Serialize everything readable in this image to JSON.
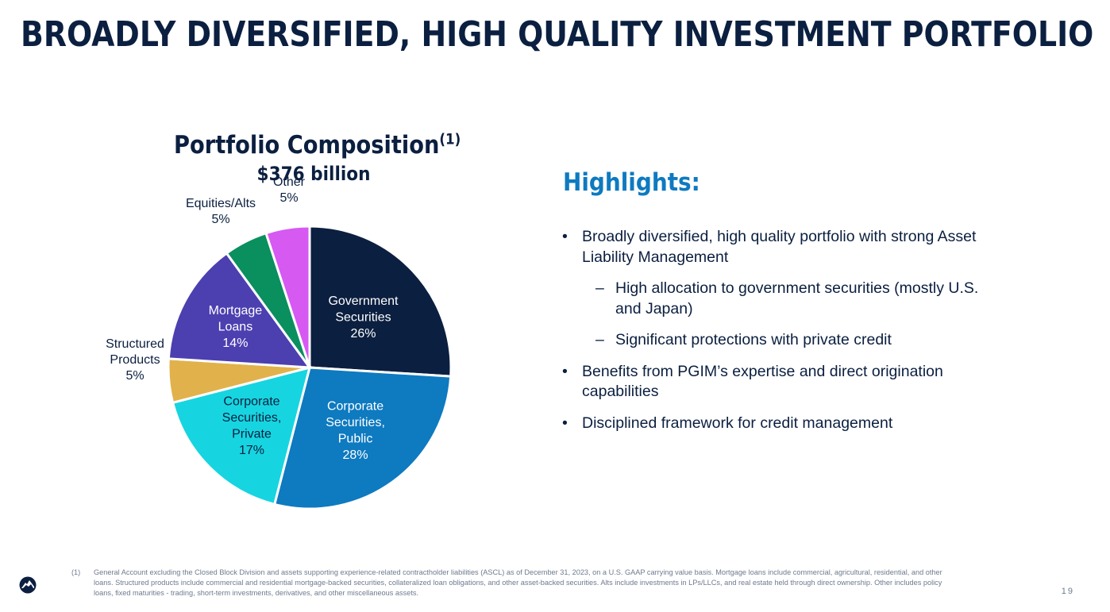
{
  "page": {
    "title": "BROADLY DIVERSIFIED, HIGH QUALITY INVESTMENT PORTFOLIO",
    "page_number": "19"
  },
  "chart": {
    "title": "Portfolio Composition",
    "title_sup": "(1)",
    "subtitle": "$376 billion"
  },
  "chart_data": {
    "type": "pie",
    "title": "Portfolio Composition",
    "subtitle": "$376 billion",
    "slices": [
      {
        "lines": [
          "Government",
          "Securities",
          "26%"
        ],
        "value": 26,
        "color": "#0b1f40",
        "label_inside": true,
        "text_color": "#ffffff"
      },
      {
        "lines": [
          "Corporate",
          "Securities,",
          "Public",
          "28%"
        ],
        "value": 28,
        "color": "#0e7ac0",
        "label_inside": true,
        "text_color": "#ffffff"
      },
      {
        "lines": [
          "Corporate",
          "Securities,",
          "Private",
          "17%"
        ],
        "value": 17,
        "color": "#16d5e0",
        "label_inside": true,
        "text_color": "#0b1f40"
      },
      {
        "lines": [
          "Structured",
          "Products",
          "5%"
        ],
        "value": 5,
        "color": "#e1b24b",
        "label_inside": false
      },
      {
        "lines": [
          "Mortgage",
          "Loans",
          "14%"
        ],
        "value": 14,
        "color": "#4c3fb0",
        "label_inside": true,
        "text_color": "#ffffff"
      },
      {
        "lines": [
          "Equities/Alts",
          "5%"
        ],
        "value": 5,
        "color": "#0a8f5f",
        "label_inside": false
      },
      {
        "lines": [
          "Other",
          "5%"
        ],
        "value": 5,
        "color": "#d659f2",
        "label_inside": false
      }
    ]
  },
  "highlights": {
    "heading": "Highlights:",
    "bullet_glyph": "•",
    "dash_glyph": "–",
    "items": [
      {
        "text": "Broadly diversified, high quality portfolio with strong Asset Liability Management"
      },
      {
        "text": "High allocation to government securities (mostly U.S. and Japan)"
      },
      {
        "text": "Significant protections with private credit"
      },
      {
        "text": "Benefits from PGIM’s expertise and direct origination capabilities"
      },
      {
        "text": "Disciplined framework for credit management"
      }
    ]
  },
  "footnote": {
    "marker": "(1)",
    "text": "General Account excluding the Closed Block Division and assets supporting experience-related contractholder liabilities (ASCL) as of December 31, 2023, on a U.S. GAAP carrying value basis. Mortgage loans include commercial, agricultural, residential, and other loans. Structured products include commercial and residential mortgage-backed securities, collateralized loan obligations, and other asset-backed securities. Alts include investments in LPs/LLCs, and real estate held through direct ownership. Other includes policy loans, fixed maturities - trading, short-term investments, derivatives, and other miscellaneous assets."
  },
  "logo": {
    "icon": "rock-logo-icon",
    "color": "#0b1f40"
  }
}
